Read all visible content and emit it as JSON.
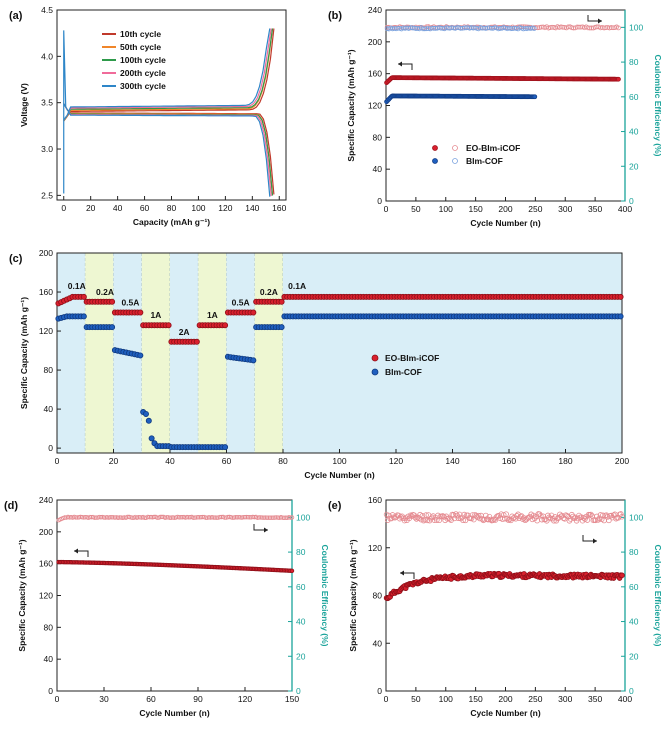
{
  "colors": {
    "red": "#d9202e",
    "blue": "#1f5fbf",
    "teal": "#1aa39a",
    "bg_light_blue": "#d9eef7",
    "bg_light_green": "#eef7d2"
  },
  "chart_data": [
    {
      "panel": "(a)",
      "type": "line",
      "xlabel": "Capacity (mAh g⁻¹)",
      "ylabel": "Voltage (V)",
      "xlim": [
        -5,
        165
      ],
      "ylim": [
        2.45,
        4.5
      ],
      "x_ticks": [
        0,
        20,
        40,
        60,
        80,
        100,
        120,
        140,
        160
      ],
      "y_ticks": [
        2.5,
        3.0,
        3.5,
        4.0,
        4.5
      ],
      "y_tick_labels": [
        "2.5",
        "3.0",
        "3.5",
        "4.0",
        "4.5"
      ],
      "legend_position": "top-center",
      "series": [
        {
          "name": "10th cycle",
          "color": "#c0392b",
          "capacity": 156
        },
        {
          "name": "50th cycle",
          "color": "#f0862a",
          "capacity": 155
        },
        {
          "name": "100th cycle",
          "color": "#2e9a4a",
          "capacity": 155
        },
        {
          "name": "200th cycle",
          "color": "#f06b9a",
          "capacity": 154
        },
        {
          "name": "300th cycle",
          "color": "#2e86c8",
          "capacity": 153
        }
      ]
    },
    {
      "panel": "(b)",
      "type": "scatter",
      "xlabel": "Cycle Number (n)",
      "ylabel": "Specific Capacity (mAh g⁻¹)",
      "y2label": "Coulombic Efficiency (%)",
      "xlim": [
        0,
        400
      ],
      "ylim": [
        0,
        240
      ],
      "y2lim": [
        0,
        110
      ],
      "x_ticks": [
        0,
        50,
        100,
        150,
        200,
        250,
        300,
        350,
        400
      ],
      "y_ticks": [
        0,
        40,
        80,
        120,
        160,
        200,
        240
      ],
      "y2_ticks": [
        0,
        20,
        40,
        60,
        80,
        100
      ],
      "legend": [
        {
          "filled": "EO-BIm-iCOF",
          "color": "#d9202e"
        },
        {
          "filled": "BIm-COF",
          "color": "#1f5fbf"
        }
      ],
      "legend_position": "center-right",
      "series": [
        {
          "name": "EO-BIm-iCOF",
          "n_cycles": 390,
          "capacity_start": 148,
          "capacity_plateau": 155,
          "capacity_end": 153,
          "ce": 100
        },
        {
          "name": "BIm-COF",
          "n_cycles": 250,
          "capacity_start": 124,
          "capacity_plateau": 132,
          "capacity_end": 131,
          "ce": 100
        }
      ]
    },
    {
      "panel": "(c)",
      "type": "scatter",
      "xlabel": "Cycle Number (n)",
      "ylabel": "Specific Capacity (mAh g⁻¹)",
      "xlim": [
        0,
        200
      ],
      "ylim": [
        -5,
        200
      ],
      "x_ticks": [
        0,
        20,
        40,
        60,
        80,
        100,
        120,
        140,
        160,
        180,
        200
      ],
      "y_ticks": [
        0,
        40,
        80,
        120,
        160,
        200
      ],
      "legend_position": "center-right",
      "rate_labels": [
        "0.1A",
        "0.2A",
        "0.5A",
        "1A",
        "2A",
        "1A",
        "0.5A",
        "0.2A",
        "0.1A"
      ],
      "rate_label_values": [
        157,
        151,
        140,
        127,
        110,
        127,
        140,
        151,
        157
      ],
      "segments": [
        {
          "from": 0,
          "to": 10,
          "rate": "0.1A",
          "eo": 155,
          "bim": 135
        },
        {
          "from": 10,
          "to": 20,
          "rate": "0.2A",
          "eo": 150,
          "bim": 124
        },
        {
          "from": 20,
          "to": 30,
          "rate": "0.5A",
          "eo": 139,
          "bim": 96
        },
        {
          "from": 30,
          "to": 40,
          "rate": "1A",
          "eo": 126,
          "bim": 2
        },
        {
          "from": 40,
          "to": 50,
          "rate": "2A",
          "eo": 109,
          "bim": 1
        },
        {
          "from": 50,
          "to": 60,
          "rate": "1A",
          "eo": 126,
          "bim": 1
        },
        {
          "from": 60,
          "to": 70,
          "rate": "0.5A",
          "eo": 139,
          "bim": 91
        },
        {
          "from": 70,
          "to": 80,
          "rate": "0.2A",
          "eo": 150,
          "bim": 124
        },
        {
          "from": 80,
          "to": 200,
          "rate": "0.1A",
          "eo": 155,
          "bim": 135
        }
      ],
      "series": [
        {
          "name": "EO-BIm-iCOF",
          "color": "#d9202e"
        },
        {
          "name": "BIm-COF",
          "color": "#1f5fbf"
        }
      ]
    },
    {
      "panel": "(d)",
      "type": "scatter",
      "xlabel": "Cycle Number (n)",
      "ylabel": "Specific Capacity (mAh g⁻¹)",
      "y2label": "Coulombic Efficiency (%)",
      "xlim": [
        0,
        150
      ],
      "ylim": [
        0,
        240
      ],
      "y2lim": [
        0,
        110
      ],
      "x_ticks": [
        0,
        30,
        60,
        90,
        120,
        150
      ],
      "y_ticks": [
        0,
        40,
        80,
        120,
        160,
        200,
        240
      ],
      "y2_ticks": [
        0,
        20,
        40,
        60,
        80,
        100
      ],
      "series": [
        {
          "capacity_start": 162,
          "capacity_end": 151,
          "ce_start": 98,
          "ce": 100,
          "n_cycles": 150
        }
      ]
    },
    {
      "panel": "(e)",
      "type": "scatter",
      "xlabel": "Cycle Number (n)",
      "ylabel": "Specific Capacity (mAh g⁻¹)",
      "y2label": "Coulombic Efficiency (%)",
      "xlim": [
        0,
        400
      ],
      "ylim": [
        0,
        160
      ],
      "y2lim": [
        0,
        110
      ],
      "x_ticks": [
        0,
        50,
        100,
        150,
        200,
        250,
        300,
        350,
        400
      ],
      "y_ticks": [
        0,
        40,
        80,
        120,
        160
      ],
      "y2_ticks": [
        0,
        20,
        40,
        60,
        80,
        100
      ],
      "series": [
        {
          "capacity_start": 77,
          "capacity_plateau": 97,
          "capacity_end": 96,
          "ce": 100,
          "n_cycles": 395
        }
      ]
    }
  ]
}
